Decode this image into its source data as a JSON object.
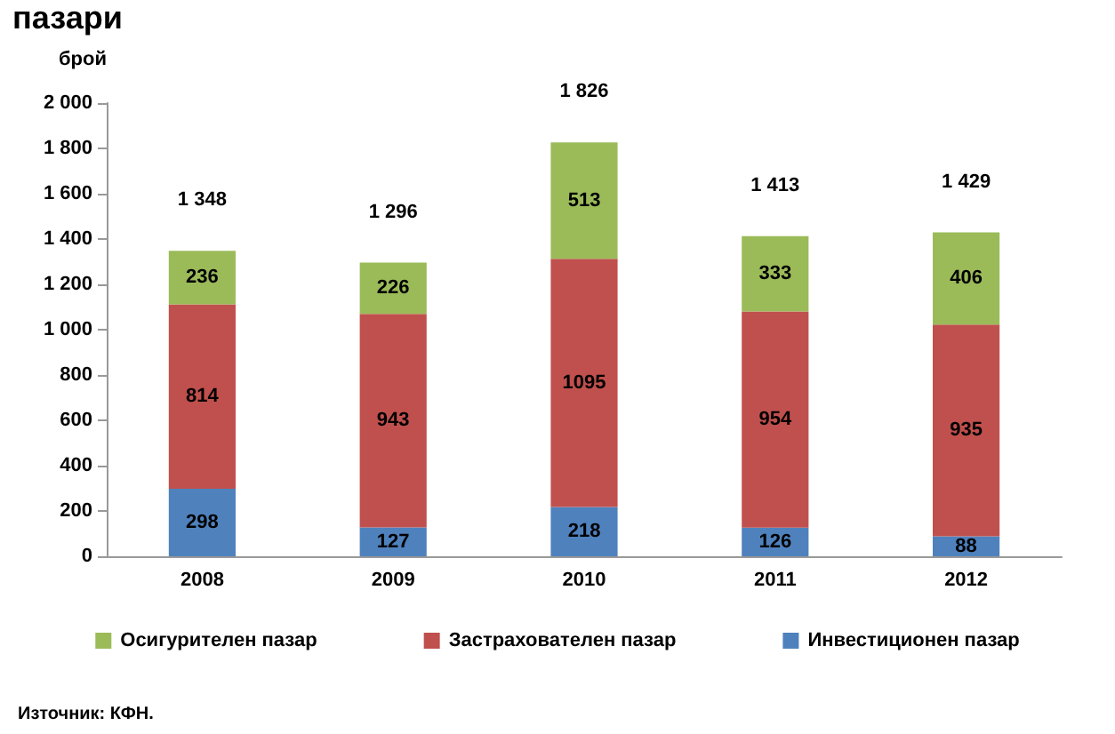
{
  "chart_data": {
    "type": "bar",
    "title": "пазари",
    "ylabel": "брой",
    "categories": [
      "2008",
      "2009",
      "2010",
      "2011",
      "2012"
    ],
    "series": [
      {
        "name": "Инвестиционен пазар",
        "color": "#4f81bd",
        "values": [
          298,
          127,
          218,
          126,
          88
        ]
      },
      {
        "name": "Застрахователен пазар",
        "color": "#c0504d",
        "values": [
          814,
          943,
          1095,
          954,
          935
        ]
      },
      {
        "name": "Осигурителен пазар",
        "color": "#9bbb59",
        "values": [
          236,
          226,
          513,
          333,
          406
        ]
      }
    ],
    "stacked": true,
    "data_labels": true,
    "totals": [
      "1 348",
      "1 296",
      "1 826",
      "1 413",
      "1 429"
    ],
    "ylim": [
      0,
      2000
    ],
    "yticks": [
      0,
      200,
      400,
      600,
      800,
      {
        "value": 1000,
        "label": "1 000"
      },
      {
        "value": 1200,
        "label": "1 200"
      },
      {
        "value": 1400,
        "label": "1 400"
      },
      {
        "value": 1600,
        "label": "1 600"
      },
      {
        "value": 1800,
        "label": "1 800"
      },
      {
        "value": 2000,
        "label": "2 000"
      }
    ],
    "grid": false,
    "legend": "bottom",
    "annotations": [
      "Източник: КФН."
    ]
  }
}
